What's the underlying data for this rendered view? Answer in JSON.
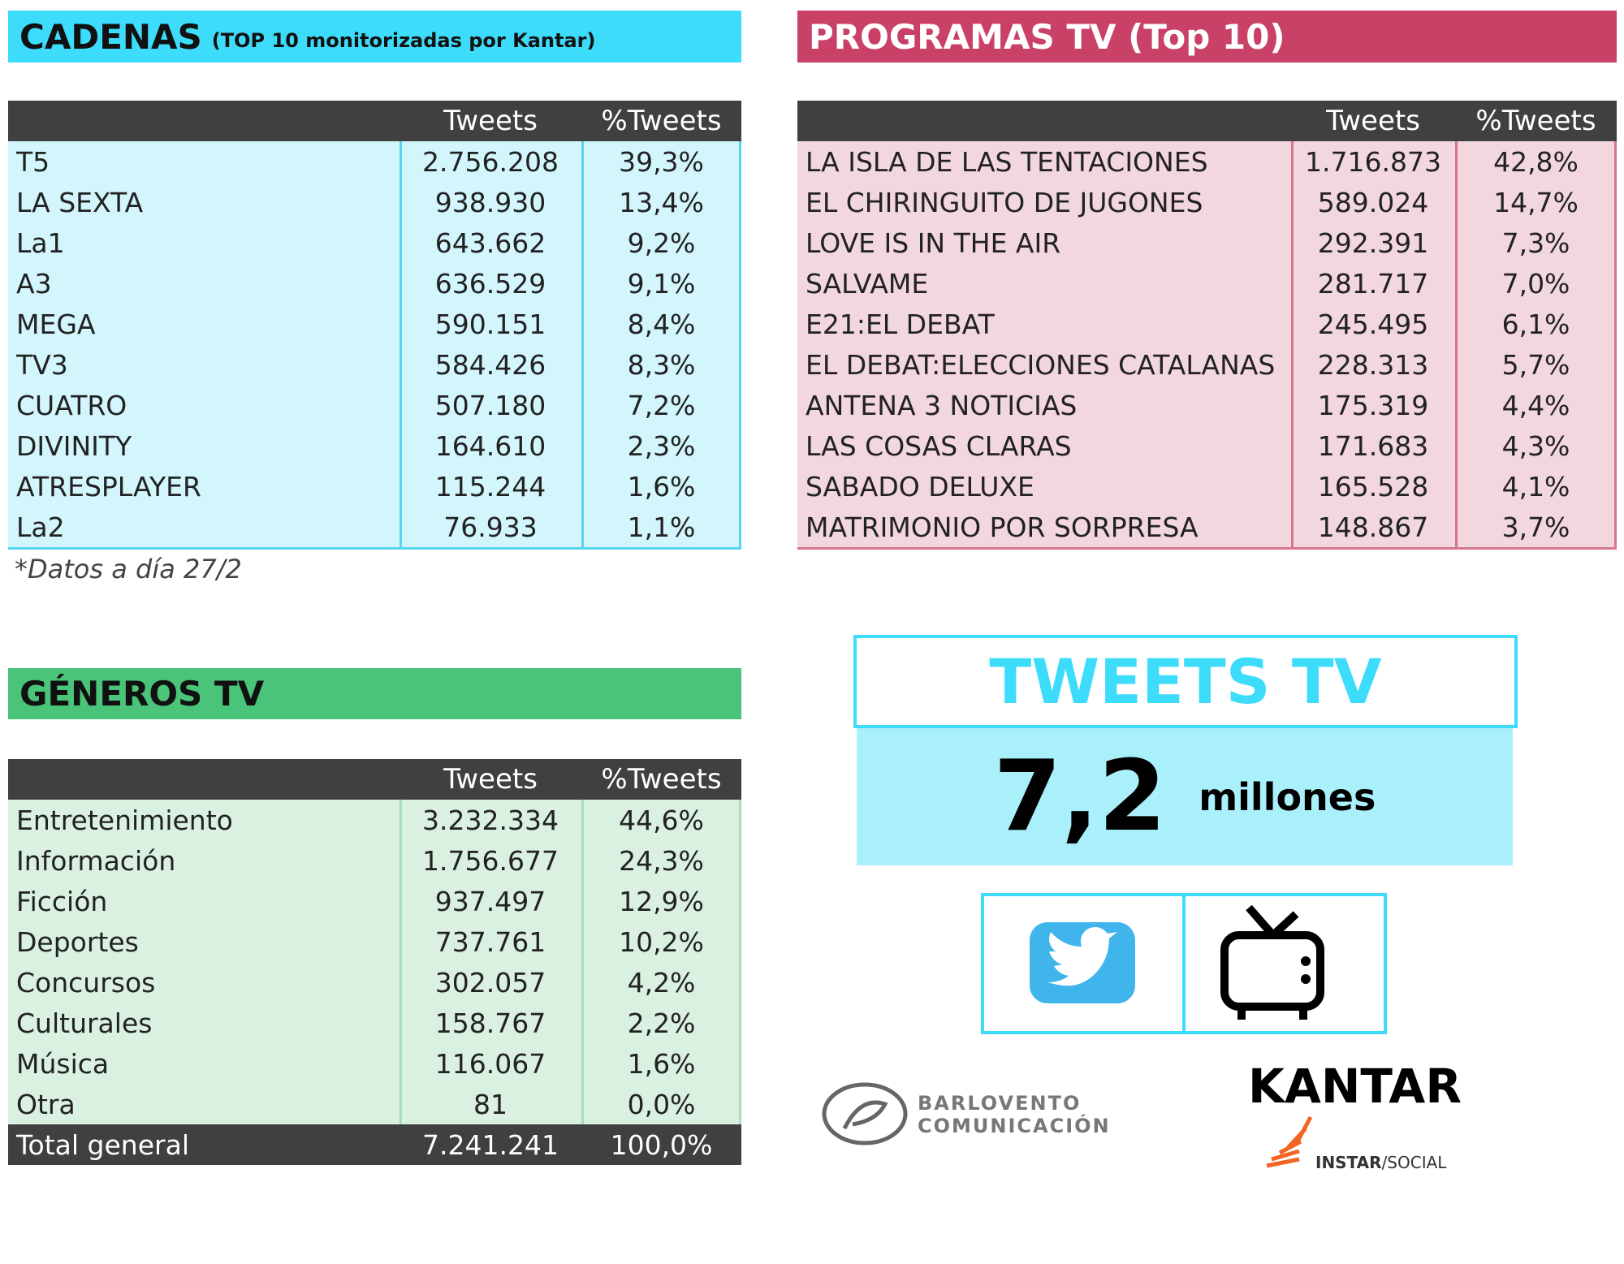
{
  "cadenas": {
    "title": "CADENAS",
    "subtitle": "(TOP 10 monitorizadas por Kantar)",
    "columns": [
      "Tweets",
      "%Tweets"
    ],
    "rows": [
      [
        "T5",
        "2.756.208",
        "39,3%"
      ],
      [
        "LA SEXTA",
        "938.930",
        "13,4%"
      ],
      [
        "La1",
        "643.662",
        "9,2%"
      ],
      [
        "A3",
        "636.529",
        "9,1%"
      ],
      [
        "MEGA",
        "590.151",
        "8,4%"
      ],
      [
        "TV3",
        "584.426",
        "8,3%"
      ],
      [
        "CUATRO",
        "507.180",
        "7,2%"
      ],
      [
        "DIVINITY",
        "164.610",
        "2,3%"
      ],
      [
        "ATRESPLAYER",
        "115.244",
        "1,6%"
      ],
      [
        "La2",
        "76.933",
        "1,1%"
      ]
    ],
    "note": "*Datos a día 27/2"
  },
  "programas": {
    "title": "PROGRAMAS TV (Top 10)",
    "columns": [
      "Tweets",
      "%Tweets"
    ],
    "rows": [
      [
        "LA ISLA DE LAS TENTACIONES",
        "1.716.873",
        "42,8%"
      ],
      [
        "EL CHIRINGUITO DE JUGONES",
        "589.024",
        "14,7%"
      ],
      [
        "LOVE IS IN THE AIR",
        "292.391",
        "7,3%"
      ],
      [
        "SALVAME",
        "281.717",
        "7,0%"
      ],
      [
        "E21:EL DEBAT",
        "245.495",
        "6,1%"
      ],
      [
        "EL DEBAT:ELECCIONES CATALANAS",
        "228.313",
        "5,7%"
      ],
      [
        "ANTENA 3 NOTICIAS",
        "175.319",
        "4,4%"
      ],
      [
        "LAS COSAS CLARAS",
        "171.683",
        "4,3%"
      ],
      [
        "SABADO DELUXE",
        "165.528",
        "4,1%"
      ],
      [
        "MATRIMONIO POR SORPRESA",
        "148.867",
        "3,7%"
      ]
    ]
  },
  "generos": {
    "title": "GÉNEROS TV",
    "columns": [
      "Tweets",
      "%Tweets"
    ],
    "rows": [
      [
        "Entretenimiento",
        "3.232.334",
        "44,6%"
      ],
      [
        "Información",
        "1.756.677",
        "24,3%"
      ],
      [
        "Ficción",
        "937.497",
        "12,9%"
      ],
      [
        "Deportes",
        "737.761",
        "10,2%"
      ],
      [
        "Concursos",
        "302.057",
        "4,2%"
      ],
      [
        "Culturales",
        "158.767",
        "2,2%"
      ],
      [
        "Música",
        "116.067",
        "1,6%"
      ],
      [
        "Otra",
        "81",
        "0,0%"
      ]
    ],
    "total": [
      "Total general",
      "7.241.241",
      "100,0%"
    ]
  },
  "summary": {
    "title": "TWEETS TV",
    "value": "7,2",
    "unit": "millones"
  },
  "logos": {
    "barlovento": [
      "BARLOVENTO",
      "COMUNICACIÓN"
    ],
    "kantar": "KANTAR",
    "instar": "INSTAR",
    "social": "/SOCIAL"
  }
}
